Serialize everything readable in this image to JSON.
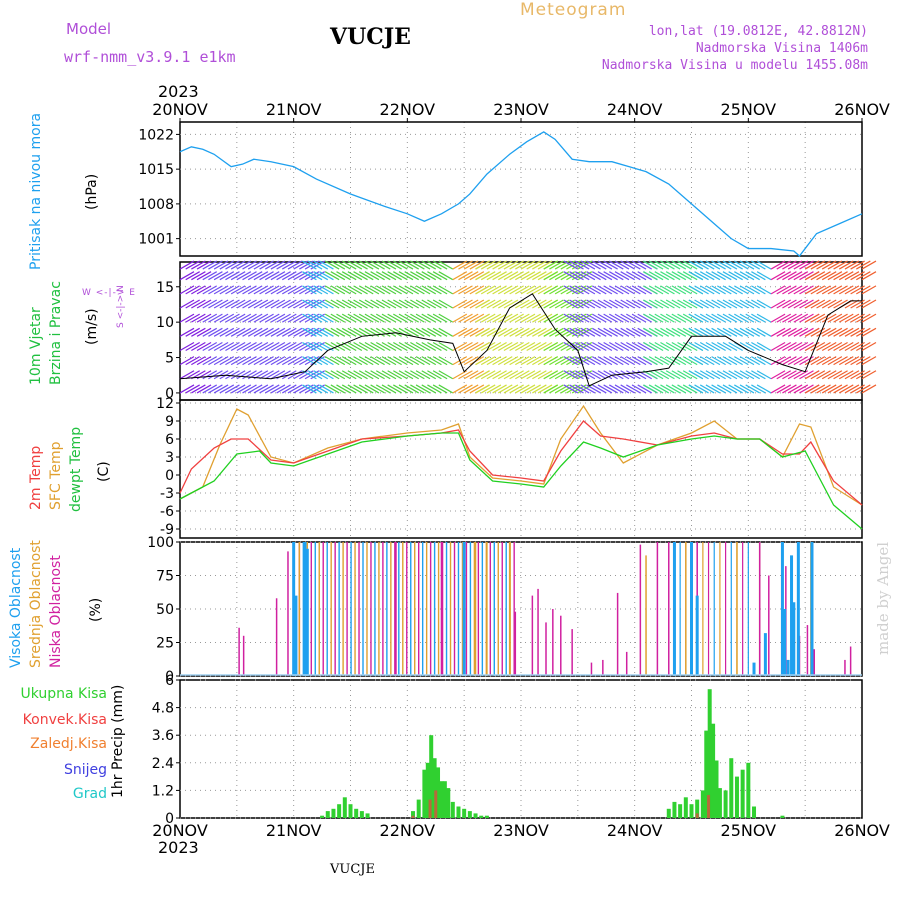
{
  "header": {
    "model_label": "Model",
    "model_name": "wrf-nmm_v3.9.1 e1km",
    "station": "VUCJE",
    "product": "Meteogram",
    "coords": "lon,lat (19.0812E, 42.8812N)",
    "elevation": "Nadmorska Visina 1406m",
    "model_elevation": "Nadmorska Visina u modelu 1455.08m",
    "year_top": "2023",
    "year_bottom": "2023",
    "footer_station": "VUCJE",
    "watermark": "made by Angel"
  },
  "colors": {
    "pressure": "#1ea0ef",
    "temp2m": "#f04040",
    "sfc": "#e0a030",
    "dewpt": "#20d020",
    "high_cloud": "#1ea0ef",
    "mid_cloud": "#e0a030",
    "low_cloud": "#d020a0",
    "total_precip": "#30d030",
    "conv_precip": "#f04040",
    "frozen_precip": "#f08030",
    "snow": "#4040e0",
    "hail": "#20c8c8",
    "label_purple": "#b04fd8"
  },
  "labels": {
    "p1": {
      "a": "Pritisak na nivou mora",
      "b": "(hPa)"
    },
    "p2": {
      "a": "10m Vjetar",
      "b": "Brzina i Pravac",
      "c": "(m/s)",
      "compass": "W <-|-> E",
      "compass_v": "S <-|-> N"
    },
    "p3": {
      "a": "2m Temp",
      "b": "SFC Temp",
      "c": "dewpt Temp",
      "d": "(C)"
    },
    "p4": {
      "a": "Visoka Oblacnost",
      "b": "Srednja Oblacnost",
      "c": "Niska Oblacnost",
      "d": "(%)"
    },
    "p5": {
      "a": "Ukupna Kisa",
      "b": "Konvek.Kisa",
      "c": "Zaledj.Kisa",
      "d": "Snijeg",
      "e": "Grad",
      "f": "1hr Precip (mm)"
    }
  },
  "chart_data": [
    {
      "type": "line",
      "panel": "pressure",
      "x_ticks": [
        "20NOV",
        "21NOV",
        "22NOV",
        "23NOV",
        "24NOV",
        "25NOV",
        "26NOV"
      ],
      "ylim": [
        997.5,
        1024.5
      ],
      "y_ticks": [
        "1001",
        "1008",
        "1015",
        "1022"
      ],
      "grid": true,
      "series": [
        {
          "key": "pressure",
          "x": [
            0,
            0.1,
            0.2,
            0.3,
            0.45,
            0.55,
            0.65,
            0.8,
            1.0,
            1.2,
            1.5,
            1.8,
            2.0,
            2.15,
            2.3,
            2.45,
            2.55,
            2.7,
            2.9,
            3.05,
            3.2,
            3.3,
            3.45,
            3.6,
            3.8,
            3.95,
            4.1,
            4.3,
            4.5,
            4.7,
            4.85,
            5.0,
            5.2,
            5.4,
            5.45,
            5.5,
            5.6,
            5.8,
            6.0
          ],
          "y": [
            1018.5,
            1019.5,
            1019,
            1018,
            1015.5,
            1016,
            1017,
            1016.5,
            1015.5,
            1013,
            1010,
            1007.5,
            1006,
            1004.5,
            1006,
            1008,
            1010,
            1014,
            1018,
            1020.5,
            1022.5,
            1021,
            1017,
            1016.5,
            1016.5,
            1015.5,
            1014.5,
            1012,
            1008,
            1004,
            1001,
            999,
            999,
            998.5,
            997.5,
            999,
            1002,
            1004,
            1006
          ]
        }
      ]
    },
    {
      "type": "line",
      "panel": "wind",
      "ylim": [
        -1,
        18.5
      ],
      "y_ticks": [
        "0",
        "5",
        "10",
        "15"
      ],
      "grid": true,
      "series": [
        {
          "key": "wind_speed",
          "x": [
            0,
            0.4,
            0.8,
            1.1,
            1.3,
            1.6,
            1.9,
            2.2,
            2.4,
            2.5,
            2.7,
            2.9,
            3.1,
            3.3,
            3.5,
            3.6,
            3.8,
            4.1,
            4.3,
            4.5,
            4.8,
            5.0,
            5.3,
            5.5,
            5.7,
            5.9,
            6.0
          ],
          "y": [
            2,
            2.5,
            2,
            3,
            6,
            8,
            8.5,
            7.5,
            7,
            3,
            6,
            12,
            14,
            9,
            6,
            1,
            2.5,
            3,
            3.5,
            8,
            8,
            6,
            4,
            3,
            11,
            13,
            13
          ]
        }
      ]
    },
    {
      "type": "line",
      "panel": "temperature",
      "ylim": [
        -10.5,
        12.5
      ],
      "y_ticks": [
        "-9",
        "-6",
        "-3",
        "0",
        "3",
        "6",
        "9",
        "12"
      ],
      "grid": true,
      "series": [
        {
          "key": "temp2m",
          "x": [
            0,
            0.1,
            0.3,
            0.45,
            0.6,
            0.8,
            1.0,
            1.3,
            1.6,
            2.0,
            2.3,
            2.45,
            2.55,
            2.75,
            3.0,
            3.2,
            3.35,
            3.55,
            3.7,
            3.9,
            4.2,
            4.5,
            4.7,
            4.9,
            5.1,
            5.3,
            5.45,
            5.55,
            5.75,
            6.0
          ],
          "y": [
            -3,
            1,
            4.5,
            6,
            6,
            2.5,
            2,
            4,
            6,
            6.5,
            7,
            7.5,
            4,
            0,
            -0.5,
            -1,
            4,
            9,
            6.5,
            6,
            5,
            6.5,
            7,
            6,
            6,
            3.5,
            3.5,
            5.5,
            -1,
            -5
          ]
        },
        {
          "key": "sfc",
          "x": [
            0,
            0.2,
            0.35,
            0.5,
            0.6,
            0.8,
            1.0,
            1.3,
            1.6,
            2.0,
            2.3,
            2.45,
            2.55,
            2.75,
            3.0,
            3.2,
            3.35,
            3.55,
            3.7,
            3.9,
            4.2,
            4.5,
            4.7,
            4.9,
            5.1,
            5.3,
            5.45,
            5.55,
            5.75,
            6.0
          ],
          "y": [
            -4,
            -2,
            5,
            11,
            10,
            3,
            2,
            4.5,
            6,
            7,
            7.5,
            8.5,
            3,
            -0.5,
            -1,
            -1.5,
            6,
            11.5,
            7,
            2,
            5,
            7,
            9,
            6,
            6,
            3,
            8.5,
            8,
            -2,
            -5
          ]
        },
        {
          "key": "dewpt",
          "x": [
            0,
            0.3,
            0.5,
            0.7,
            0.8,
            1.0,
            1.3,
            1.6,
            2.0,
            2.3,
            2.45,
            2.55,
            2.75,
            3.0,
            3.2,
            3.35,
            3.55,
            3.7,
            3.9,
            4.2,
            4.5,
            4.7,
            4.9,
            5.1,
            5.3,
            5.5,
            5.75,
            6.0
          ],
          "y": [
            -4,
            -1,
            3.5,
            4,
            2,
            1.5,
            3.5,
            5.5,
            6.5,
            7,
            7,
            2.5,
            -1,
            -1.5,
            -2,
            1.5,
            5.5,
            4.5,
            3,
            5,
            6,
            6.5,
            6,
            6,
            3,
            4,
            -5,
            -9
          ]
        }
      ]
    },
    {
      "type": "bar",
      "panel": "clouds",
      "ylim": [
        0,
        100
      ],
      "y_ticks": [
        "0",
        "25",
        "50",
        "75",
        "100"
      ],
      "grid": true,
      "note": "day offsets (0=20NOV) with cloud fraction %",
      "low": {
        "x": [
          0.52,
          0.56,
          0.85,
          0.95,
          1.9,
          2.3,
          2.95,
          3.1,
          3.15,
          3.22,
          3.28,
          3.35,
          3.45,
          3.62,
          3.72,
          3.85,
          3.93,
          4.05,
          4.2,
          4.3,
          4.55,
          5.1,
          5.18,
          5.33,
          5.45,
          5.52,
          5.58,
          5.85,
          5.9
        ],
        "y": [
          36,
          30,
          58,
          93,
          100,
          100,
          48,
          60,
          65,
          40,
          50,
          45,
          35,
          10,
          12,
          62,
          18,
          98,
          100,
          100,
          100,
          100,
          75,
          82,
          30,
          38,
          20,
          12,
          22
        ]
      },
      "high": {
        "x": [
          1.0,
          1.02,
          1.1,
          1.12,
          2.5,
          4.35,
          4.5,
          4.55,
          5.05,
          5.15,
          5.3,
          5.32,
          5.35,
          5.38,
          5.4,
          5.44,
          5.56
        ],
        "y": [
          100,
          60,
          100,
          95,
          100,
          100,
          100,
          60,
          10,
          32,
          100,
          50,
          12,
          90,
          55,
          100,
          100
        ]
      },
      "mid": {
        "x": [
          1.05,
          2.6,
          2.7,
          2.9,
          4.1,
          4.45,
          4.9,
          5.1,
          5.3,
          5.55
        ],
        "y": [
          100,
          100,
          100,
          100,
          90,
          100,
          100,
          100,
          100,
          100
        ]
      }
    },
    {
      "type": "bar",
      "panel": "precip",
      "ylim": [
        0,
        6
      ],
      "y_ticks": [
        "0",
        "1.2",
        "2.4",
        "3.6",
        "4.8",
        "6"
      ],
      "grid": true,
      "total": {
        "x": [
          1.25,
          1.3,
          1.35,
          1.4,
          1.45,
          1.5,
          1.55,
          1.6,
          1.65,
          2.05,
          2.1,
          2.15,
          2.18,
          2.21,
          2.24,
          2.27,
          2.3,
          2.33,
          2.36,
          2.4,
          2.45,
          2.5,
          2.55,
          2.6,
          2.65,
          2.7,
          4.3,
          4.35,
          4.4,
          4.45,
          4.5,
          4.55,
          4.6,
          4.63,
          4.66,
          4.69,
          4.72,
          4.75,
          4.8,
          4.85,
          4.9,
          4.95,
          5.0,
          5.05,
          5.3
        ],
        "y": [
          0.1,
          0.3,
          0.4,
          0.6,
          0.9,
          0.6,
          0.4,
          0.3,
          0.2,
          0.3,
          0.8,
          2.1,
          2.4,
          3.6,
          2.6,
          2.2,
          1.6,
          1.6,
          1.3,
          0.7,
          0.5,
          0.4,
          0.3,
          0.2,
          0.1,
          0.1,
          0.4,
          0.7,
          0.6,
          0.9,
          0.6,
          0.8,
          1.2,
          3.8,
          5.6,
          4.1,
          2.5,
          1.3,
          1.2,
          2.6,
          1.8,
          2.1,
          2.4,
          0.5,
          0.1
        ]
      },
      "conv": {
        "x": [
          2.05,
          2.2,
          2.25,
          4.55,
          4.65
        ],
        "y": [
          0.1,
          0.8,
          1.2,
          0.2,
          1.0
        ]
      }
    }
  ]
}
